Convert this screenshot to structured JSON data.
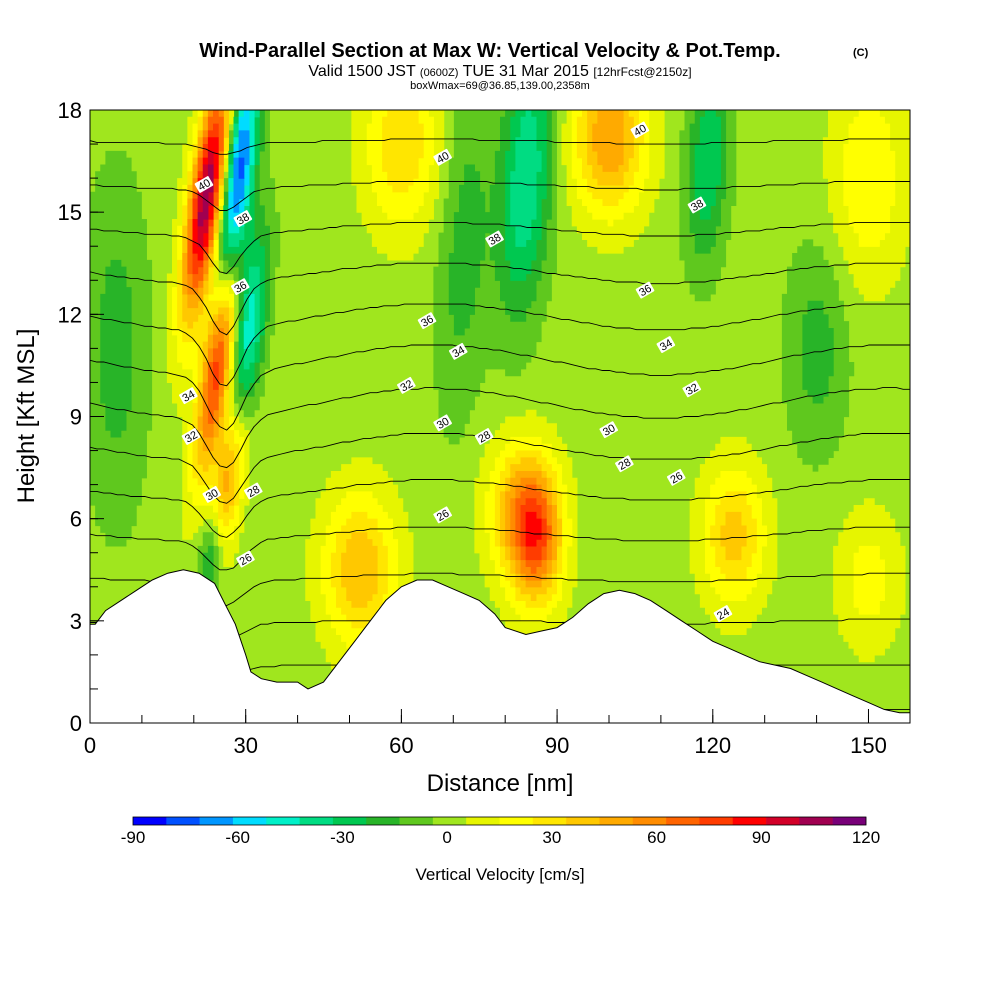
{
  "title": {
    "main": "Wind-Parallel Section at Max W: Vertical Velocity & Pot.Temp.",
    "copyright": "(C)",
    "valid_a": "Valid 1500 JST",
    "valid_z": "(0600Z)",
    "valid_b": "TUE 31 Mar 2015",
    "fcst": "[12hrFcst@2150z]",
    "box": "boxWmax=69@36.85,139.00,2358m"
  },
  "chart_data": {
    "type": "heatmap",
    "xlabel": "Distance [nm]",
    "ylabel": "Height [Kft MSL]",
    "xlim": [
      0,
      158
    ],
    "ylim": [
      0,
      18
    ],
    "x_ticks": [
      0,
      30,
      60,
      90,
      120,
      150
    ],
    "y_ticks": [
      0,
      3,
      6,
      9,
      12,
      15,
      18
    ],
    "x_minor_step": 10,
    "y_minor_step": 1,
    "colorbar": {
      "label": "Vertical Velocity [cm/s]",
      "min": -90,
      "max": 120,
      "step": 10,
      "tick_values": [
        -90,
        -60,
        -30,
        0,
        30,
        60,
        90,
        120
      ],
      "colors": [
        "#0000ff",
        "#0050ff",
        "#0096ff",
        "#00dcff",
        "#00f0c8",
        "#00dc82",
        "#00c850",
        "#28b428",
        "#5fc81e",
        "#a0e61e",
        "#e6f500",
        "#ffff00",
        "#ffe600",
        "#ffc800",
        "#ffaa00",
        "#ff8c00",
        "#ff6400",
        "#ff3c00",
        "#ff0000",
        "#d20028",
        "#a00050",
        "#780078"
      ]
    },
    "terrain_profile": [
      [
        0,
        2.9
      ],
      [
        1,
        2.9
      ],
      [
        3,
        3.3
      ],
      [
        6,
        3.6
      ],
      [
        9,
        3.9
      ],
      [
        12,
        4.2
      ],
      [
        15,
        4.4
      ],
      [
        18,
        4.5
      ],
      [
        21,
        4.4
      ],
      [
        24,
        4.1
      ],
      [
        26,
        3.5
      ],
      [
        28,
        2.9
      ],
      [
        30,
        2.0
      ],
      [
        31,
        1.5
      ],
      [
        33,
        1.3
      ],
      [
        36,
        1.2
      ],
      [
        40,
        1.2
      ],
      [
        42,
        1.0
      ],
      [
        45,
        1.2
      ],
      [
        48,
        1.8
      ],
      [
        51,
        2.4
      ],
      [
        54,
        3.0
      ],
      [
        57,
        3.6
      ],
      [
        60,
        4.0
      ],
      [
        63,
        4.2
      ],
      [
        66,
        4.2
      ],
      [
        69,
        4.0
      ],
      [
        72,
        3.8
      ],
      [
        75,
        3.6
      ],
      [
        78,
        3.2
      ],
      [
        80,
        2.8
      ],
      [
        84,
        2.6
      ],
      [
        87,
        2.7
      ],
      [
        90,
        2.8
      ],
      [
        93,
        3.1
      ],
      [
        96,
        3.5
      ],
      [
        99,
        3.8
      ],
      [
        102,
        3.9
      ],
      [
        105,
        3.8
      ],
      [
        108,
        3.6
      ],
      [
        111,
        3.3
      ],
      [
        114,
        3.0
      ],
      [
        117,
        2.7
      ],
      [
        120,
        2.4
      ],
      [
        123,
        2.2
      ],
      [
        126,
        2.0
      ],
      [
        129,
        1.8
      ],
      [
        132,
        1.7
      ],
      [
        135,
        1.6
      ],
      [
        138,
        1.4
      ],
      [
        141,
        1.2
      ],
      [
        144,
        1.0
      ],
      [
        147,
        0.8
      ],
      [
        150,
        0.6
      ],
      [
        153,
        0.4
      ],
      [
        156,
        0.3
      ],
      [
        158,
        0.3
      ]
    ],
    "vertical_velocity_features": [
      {
        "x": 22.5,
        "z": 15.5,
        "w": 115,
        "x_width": 3.2,
        "z_width": 3.5,
        "tilt": 0.9
      },
      {
        "x": 24.5,
        "z": 10.5,
        "w": 85,
        "x_width": 3.0,
        "z_width": 3.2,
        "tilt": 0.9
      },
      {
        "x": 26.5,
        "z": 7.0,
        "w": 55,
        "x_width": 2.8,
        "z_width": 2.5,
        "tilt": 0.9
      },
      {
        "x": 28.5,
        "z": 16.0,
        "w": -85,
        "x_width": 3.0,
        "z_width": 3.5,
        "tilt": 0.7
      },
      {
        "x": 30.5,
        "z": 11.5,
        "w": -55,
        "x_width": 3.0,
        "z_width": 3.0,
        "tilt": 0.7
      },
      {
        "x": 23.5,
        "z": 5.0,
        "w": -40,
        "x_width": 2.5,
        "z_width": 1.5,
        "tilt": 0.7
      },
      {
        "x": 52,
        "z": 4.5,
        "w": 45,
        "x_width": 7,
        "z_width": 2.2,
        "tilt": 0
      },
      {
        "x": 86,
        "z": 5.5,
        "w": 70,
        "x_width": 5,
        "z_width": 2.0,
        "tilt": 0
      },
      {
        "x": 82,
        "z": 6.3,
        "w": 35,
        "x_width": 6,
        "z_width": 2.0,
        "tilt": 0
      },
      {
        "x": 124,
        "z": 5.5,
        "w": 40,
        "x_width": 6,
        "z_width": 2.0,
        "tilt": 0
      },
      {
        "x": 150,
        "z": 4.2,
        "w": 20,
        "x_width": 6,
        "z_width": 2.0,
        "tilt": 0
      },
      {
        "x": 100,
        "z": 17.2,
        "w": 55,
        "x_width": 7,
        "z_width": 2.2,
        "tilt": 0
      },
      {
        "x": 60,
        "z": 17.0,
        "w": 35,
        "x_width": 7,
        "z_width": 2.5,
        "tilt": 0
      },
      {
        "x": 84,
        "z": 16.0,
        "w": -45,
        "x_width": 5,
        "z_width": 4.0,
        "tilt": 0.4
      },
      {
        "x": 119,
        "z": 16.5,
        "w": -35,
        "x_width": 4,
        "z_width": 3.0,
        "tilt": 0.3
      },
      {
        "x": 150,
        "z": 16.0,
        "w": 25,
        "x_width": 7,
        "z_width": 3.0,
        "tilt": 0
      },
      {
        "x": 140,
        "z": 11.0,
        "w": -20,
        "x_width": 6,
        "z_width": 3.0,
        "tilt": 0
      },
      {
        "x": 5,
        "z": 11,
        "w": -20,
        "x_width": 6,
        "z_width": 5,
        "tilt": 0
      },
      {
        "x": 72,
        "z": 14,
        "w": -20,
        "x_width": 5,
        "z_width": 5,
        "tilt": 0.3
      }
    ],
    "potential_temperature_contours": {
      "levels": [
        24,
        25,
        26,
        27,
        28,
        29,
        30,
        31,
        32,
        33,
        34,
        35,
        36,
        37,
        38,
        39,
        40
      ],
      "labels": [
        {
          "value": "40",
          "x": 22,
          "z": 15.8
        },
        {
          "value": "38",
          "x": 29.5,
          "z": 14.8
        },
        {
          "value": "36",
          "x": 29,
          "z": 12.8
        },
        {
          "value": "34",
          "x": 19,
          "z": 9.6
        },
        {
          "value": "32",
          "x": 19.5,
          "z": 8.4
        },
        {
          "value": "30",
          "x": 23.5,
          "z": 6.7
        },
        {
          "value": "28",
          "x": 31.5,
          "z": 6.8
        },
        {
          "value": "26",
          "x": 30,
          "z": 4.8
        },
        {
          "value": "40",
          "x": 68,
          "z": 16.6
        },
        {
          "value": "38",
          "x": 78,
          "z": 14.2
        },
        {
          "value": "36",
          "x": 65,
          "z": 11.8
        },
        {
          "value": "34",
          "x": 71,
          "z": 10.9
        },
        {
          "value": "32",
          "x": 61,
          "z": 9.9
        },
        {
          "value": "30",
          "x": 68,
          "z": 8.8
        },
        {
          "value": "28",
          "x": 76,
          "z": 8.4
        },
        {
          "value": "26",
          "x": 68,
          "z": 6.1
        },
        {
          "value": "40",
          "x": 106,
          "z": 17.4
        },
        {
          "value": "38",
          "x": 117,
          "z": 15.2
        },
        {
          "value": "36",
          "x": 107,
          "z": 12.7
        },
        {
          "value": "34",
          "x": 111,
          "z": 11.1
        },
        {
          "value": "32",
          "x": 116,
          "z": 9.8
        },
        {
          "value": "30",
          "x": 100,
          "z": 8.6
        },
        {
          "value": "28",
          "x": 103,
          "z": 7.6
        },
        {
          "value": "26",
          "x": 113,
          "z": 7.2
        },
        {
          "value": "24",
          "x": 122,
          "z": 3.2
        }
      ]
    }
  }
}
